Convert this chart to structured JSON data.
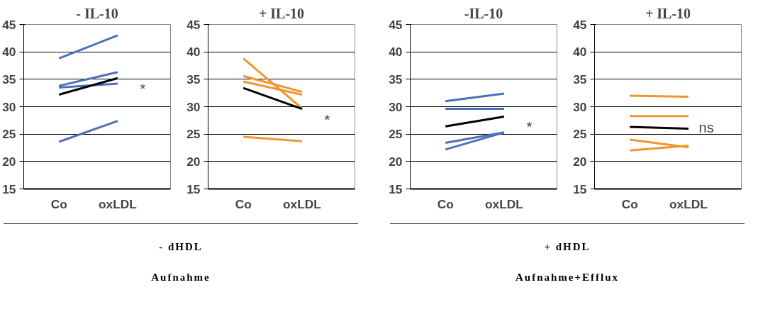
{
  "chart_data": [
    {
      "type": "line",
      "title": "- IL-10",
      "categories": [
        "Co",
        "oxLDL"
      ],
      "ylim": [
        15,
        45
      ],
      "yticks": [
        15,
        20,
        25,
        30,
        35,
        40,
        45
      ],
      "grid": "y",
      "series": [
        {
          "color": "#4a72b8",
          "values": [
            38.8,
            43.0
          ]
        },
        {
          "color": "#4a72b8",
          "values": [
            33.8,
            36.3
          ]
        },
        {
          "color": "#4a72b8",
          "values": [
            33.5,
            34.2
          ]
        },
        {
          "color": "#4a72b8",
          "values": [
            23.6,
            27.4
          ]
        },
        {
          "color": "#000000",
          "values": [
            32.2,
            35.2
          ]
        }
      ],
      "annotations": [
        "*",
        "- dHDL",
        "Aufnahme"
      ]
    },
    {
      "type": "line",
      "title": "+ IL-10",
      "categories": [
        "Co",
        "oxLDL"
      ],
      "ylim": [
        15,
        45
      ],
      "yticks": [
        15,
        20,
        25,
        30,
        35,
        40,
        45
      ],
      "grid": "y",
      "series": [
        {
          "color": "#f0962e",
          "values": [
            38.8,
            29.7
          ]
        },
        {
          "color": "#f0962e",
          "values": [
            35.6,
            32.7
          ]
        },
        {
          "color": "#f0962e",
          "values": [
            34.6,
            32.2
          ]
        },
        {
          "color": "#f0962e",
          "values": [
            24.5,
            23.7
          ]
        },
        {
          "color": "#000000",
          "values": [
            33.4,
            29.6
          ]
        }
      ],
      "annotations": [
        "*"
      ]
    },
    {
      "type": "line",
      "title": "-IL-10",
      "categories": [
        "Co",
        "oxLDL"
      ],
      "ylim": [
        15,
        45
      ],
      "yticks": [
        15,
        20,
        25,
        30,
        35,
        40,
        45
      ],
      "grid": "y",
      "series": [
        {
          "color": "#4a72b8",
          "values": [
            31.0,
            32.4
          ]
        },
        {
          "color": "#4a72b8",
          "values": [
            29.6,
            29.6
          ]
        },
        {
          "color": "#4a72b8",
          "values": [
            23.4,
            25.3
          ]
        },
        {
          "color": "#4a72b8",
          "values": [
            22.2,
            25.3
          ]
        },
        {
          "color": "#000000",
          "values": [
            26.4,
            28.2
          ]
        }
      ],
      "annotations": [
        "*",
        "+ dHDL",
        "Aufnahme+Efflux"
      ]
    },
    {
      "type": "line",
      "title": "+ IL-10",
      "categories": [
        "Co",
        "oxLDL"
      ],
      "ylim": [
        15,
        45
      ],
      "yticks": [
        15,
        20,
        25,
        30,
        35,
        40,
        45
      ],
      "grid": "y",
      "series": [
        {
          "color": "#f0962e",
          "values": [
            32.0,
            31.8
          ]
        },
        {
          "color": "#f0962e",
          "values": [
            28.3,
            28.3
          ]
        },
        {
          "color": "#f0962e",
          "values": [
            24.0,
            22.6
          ]
        },
        {
          "color": "#f0962e",
          "values": [
            22.0,
            22.9
          ]
        },
        {
          "color": "#000000",
          "values": [
            26.3,
            26.0
          ]
        }
      ],
      "annotations": [
        "ns"
      ]
    }
  ]
}
